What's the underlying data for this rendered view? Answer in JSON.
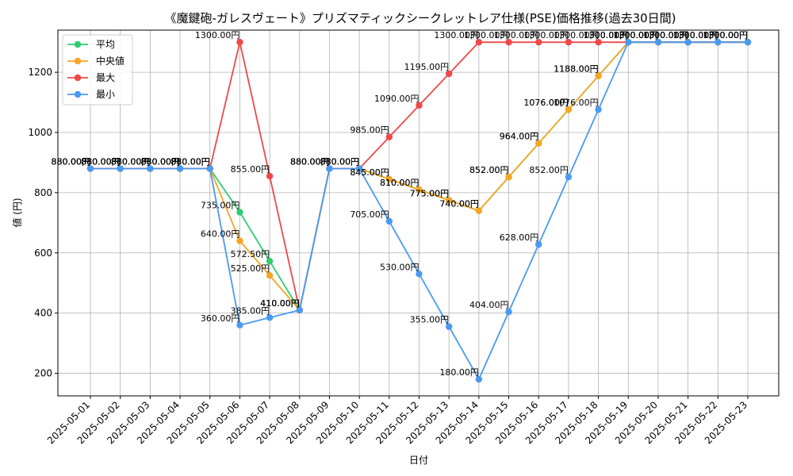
{
  "chart_data": {
    "type": "line",
    "title": "《魔鍵砲-ガレスヴェート》プリズマティックシークレットレア仕様(PSE)価格推移(過去30日間)",
    "xlabel": "日付",
    "ylabel": "値 (円)",
    "ylim": [
      125,
      1340
    ],
    "yticks": [
      200,
      400,
      600,
      800,
      1000,
      1200
    ],
    "grid": true,
    "legend_position": "top-left",
    "value_suffix": "円",
    "categories": [
      "2025-05-01",
      "2025-05-02",
      "2025-05-03",
      "2025-05-04",
      "2025-05-05",
      "2025-05-06",
      "2025-05-07",
      "2025-05-08",
      "2025-05-09",
      "2025-05-10",
      "2025-05-11",
      "2025-05-12",
      "2025-05-13",
      "2025-05-14",
      "2025-05-15",
      "2025-05-16",
      "2025-05-17",
      "2025-05-18",
      "2025-05-19",
      "2025-05-20",
      "2025-05-21",
      "2025-05-22",
      "2025-05-23"
    ],
    "series": [
      {
        "name": "平均",
        "color": "#2ecc71",
        "values": [
          880,
          880,
          880,
          880,
          880,
          735,
          572.5,
          410,
          880,
          880,
          845,
          810,
          775,
          740,
          852,
          964,
          1076,
          1188,
          1300,
          1300,
          1300,
          1300,
          1300
        ]
      },
      {
        "name": "中央値",
        "color": "#f5a623",
        "values": [
          880,
          880,
          880,
          880,
          880,
          640,
          525,
          410,
          880,
          880,
          845,
          810,
          775,
          740,
          852,
          964,
          1076,
          1188,
          1300,
          1300,
          1300,
          1300,
          1300
        ]
      },
      {
        "name": "最大",
        "color": "#f04848",
        "values": [
          880,
          880,
          880,
          880,
          880,
          1300,
          855,
          410,
          880,
          880,
          985,
          1090,
          1195,
          1300,
          1300,
          1300,
          1300,
          1300,
          1300,
          1300,
          1300,
          1300,
          1300
        ]
      },
      {
        "name": "最小",
        "color": "#4a9af2",
        "values": [
          880,
          880,
          880,
          880,
          880,
          360,
          385,
          410,
          880,
          880,
          705,
          530,
          355,
          180,
          404,
          628,
          852,
          1076,
          1300,
          1300,
          1300,
          1300,
          1300
        ]
      }
    ]
  }
}
